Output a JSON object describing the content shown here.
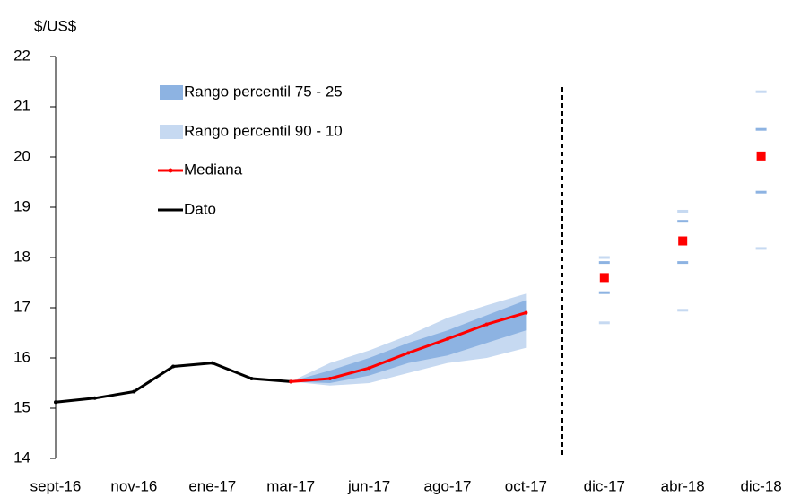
{
  "chart_data": {
    "type": "line",
    "y_label": "$/US$",
    "categories": [
      "sept-16",
      null,
      "nov-16",
      null,
      "ene-17",
      null,
      "mar-17",
      null,
      "jun-17",
      null,
      "ago-17",
      null,
      "oct-17",
      null,
      "dic-17",
      null,
      "abr-18",
      null,
      "dic-18"
    ],
    "ylim": [
      14,
      22
    ],
    "yticks": [
      14,
      15,
      16,
      17,
      18,
      19,
      20,
      21,
      22
    ],
    "series": [
      {
        "name": "Rango percentil 75 - 25",
        "kind": "band",
        "color": "#8db3e2",
        "low": [
          null,
          null,
          null,
          null,
          null,
          null,
          15.53,
          15.5,
          15.65,
          15.9,
          16.05,
          16.3,
          16.55,
          null,
          17.3,
          null,
          17.9,
          null,
          19.3
        ],
        "high": [
          null,
          null,
          null,
          null,
          null,
          null,
          15.53,
          15.75,
          16.0,
          16.3,
          16.55,
          16.85,
          17.15,
          null,
          17.9,
          null,
          18.72,
          null,
          20.55
        ]
      },
      {
        "name": "Rango percentil 90 - 10",
        "kind": "band",
        "color": "#c6d9f1",
        "low": [
          null,
          null,
          null,
          null,
          null,
          null,
          15.53,
          15.45,
          15.5,
          15.7,
          15.9,
          16.0,
          16.2,
          null,
          16.7,
          null,
          16.95,
          null,
          18.18
        ],
        "high": [
          null,
          null,
          null,
          null,
          null,
          null,
          15.53,
          15.9,
          16.15,
          16.45,
          16.8,
          17.05,
          17.28,
          null,
          18.0,
          null,
          18.92,
          null,
          21.3
        ]
      },
      {
        "name": "Mediana",
        "kind": "line",
        "color": "#ff0000",
        "values": [
          null,
          null,
          null,
          null,
          null,
          null,
          15.53,
          15.59,
          15.8,
          16.1,
          16.38,
          16.67,
          16.9,
          null,
          17.6,
          null,
          18.33,
          null,
          20.02
        ]
      },
      {
        "name": "Dato",
        "kind": "line",
        "color": "#000000",
        "values": [
          15.12,
          15.2,
          15.33,
          15.83,
          15.9,
          15.59,
          15.53,
          null,
          null,
          null,
          null,
          null,
          null,
          null,
          null,
          null,
          null,
          null,
          null
        ]
      }
    ]
  }
}
